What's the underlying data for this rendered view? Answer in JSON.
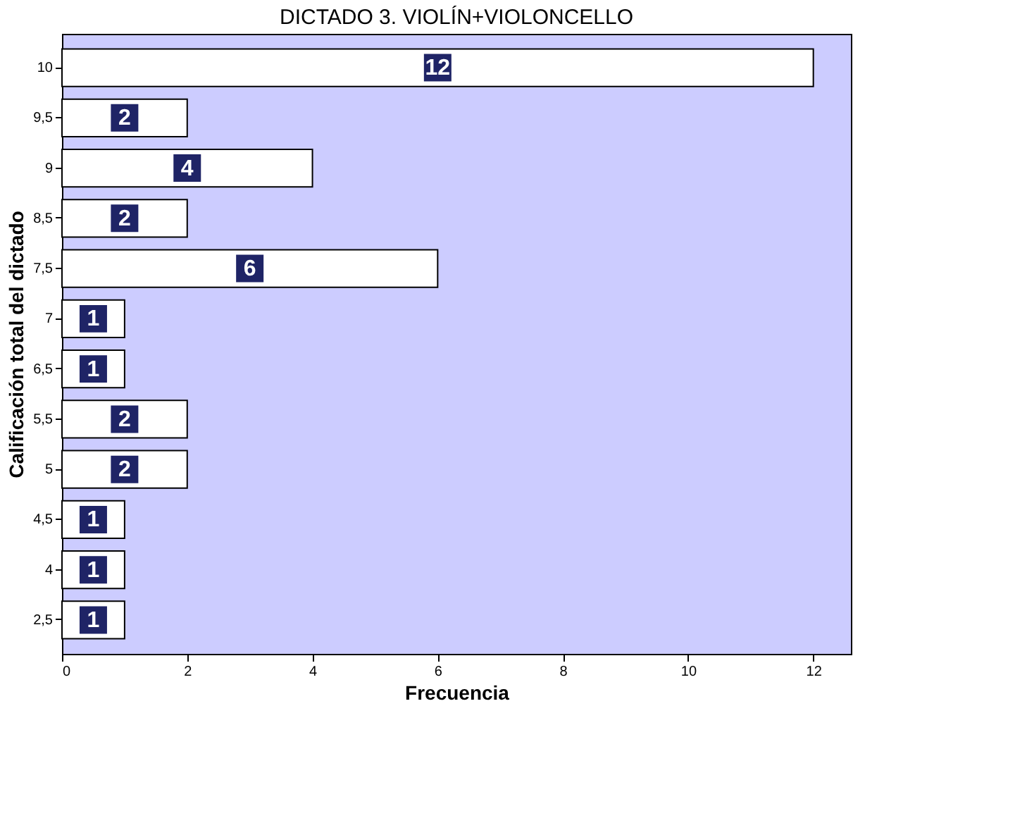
{
  "chart_data": {
    "type": "bar",
    "orientation": "horizontal",
    "title": "DICTADO 3. VIOLÍN+VIOLONCELLO",
    "xlabel": "Frecuencia",
    "ylabel": "Calificación total del dictado",
    "categories": [
      "10",
      "9,5",
      "9",
      "8,5",
      "7,5",
      "7",
      "6,5",
      "5,5",
      "5",
      "4,5",
      "4",
      "2,5"
    ],
    "series": [
      {
        "color": "#ffffff",
        "values": [
          12,
          2,
          4,
          2,
          6,
          1,
          1,
          2,
          2,
          1,
          1,
          1
        ]
      }
    ],
    "xlim": [
      0,
      12.6
    ],
    "xticks": [
      0,
      2,
      4,
      6,
      8,
      10,
      12
    ],
    "data_labels": true,
    "grid": false
  }
}
